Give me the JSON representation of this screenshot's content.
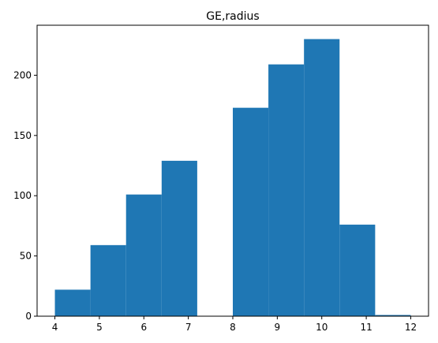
{
  "chart_data": {
    "type": "bar",
    "title": "GE,radius",
    "xlabel": "",
    "ylabel": "",
    "bin_edges": [
      4.0,
      4.8,
      5.6,
      6.4,
      7.2,
      8.0,
      8.8,
      9.6,
      10.4,
      11.2,
      12.0
    ],
    "values": [
      22,
      59,
      101,
      129,
      0,
      173,
      209,
      230,
      76,
      1
    ],
    "xlim": [
      3.6,
      12.4
    ],
    "ylim": [
      0,
      241.5
    ],
    "xticks": [
      4,
      5,
      6,
      7,
      8,
      9,
      10,
      11,
      12
    ],
    "yticks": [
      0,
      50,
      100,
      150,
      200
    ],
    "bar_color": "#1f77b4",
    "grid": false,
    "legend": false
  }
}
